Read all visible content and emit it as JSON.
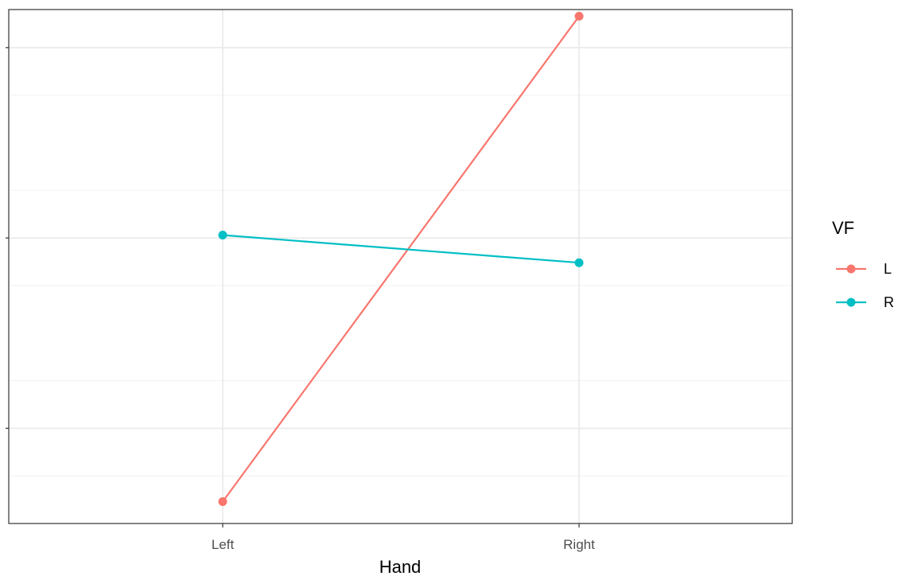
{
  "chart_data": {
    "type": "line",
    "categories": [
      "Left",
      "Right"
    ],
    "xlabel": "Hand",
    "ylabel": "",
    "ylim": [
      0,
      5.4
    ],
    "y_ticks_labeled": [],
    "grid": true,
    "legend": {
      "title": "VF",
      "position": "right",
      "entries": [
        "L",
        "R"
      ]
    },
    "series": [
      {
        "name": "L",
        "color": "#F8766D",
        "values": [
          0.23,
          5.33
        ]
      },
      {
        "name": "R",
        "color": "#00BFC4",
        "values": [
          3.03,
          2.74
        ]
      }
    ]
  }
}
